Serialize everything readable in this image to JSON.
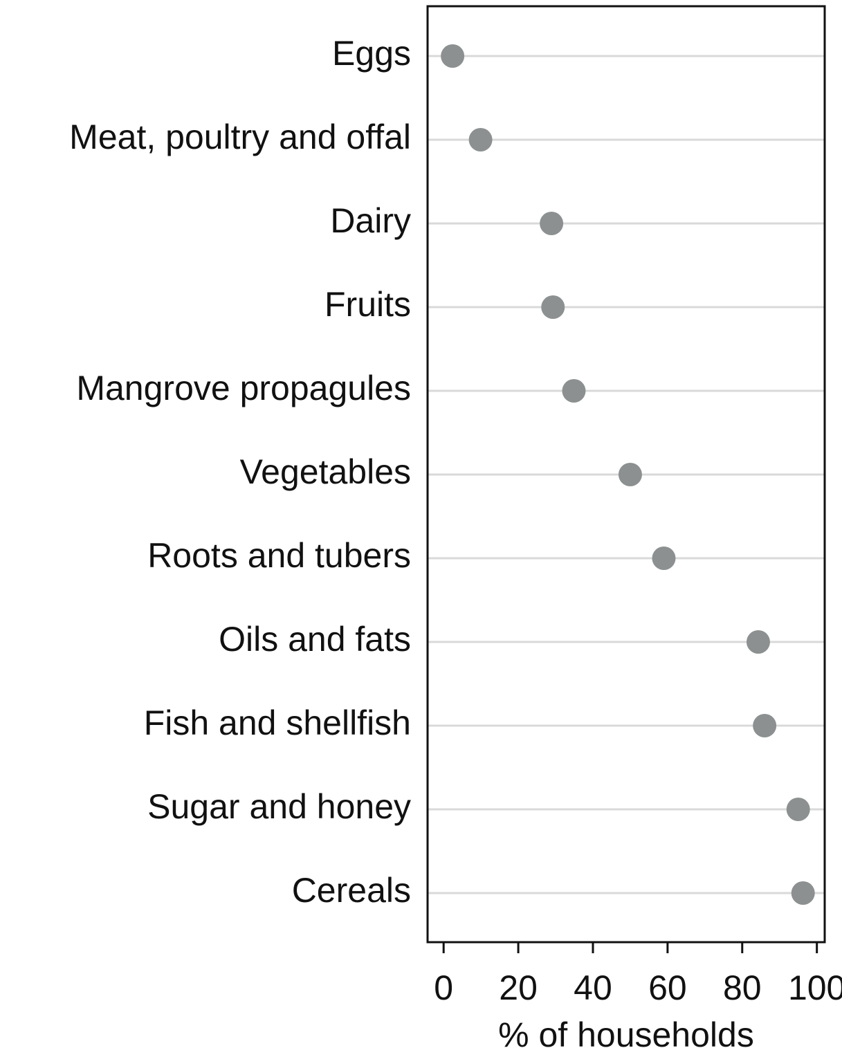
{
  "chart_data": {
    "type": "dot",
    "categories": [
      "Eggs",
      "Meat, poultry and offal",
      "Dairy",
      "Fruits",
      "Mangrove propagules",
      "Vegetables",
      "Roots and tubers",
      "Oils and fats",
      "Fish and shellfish",
      "Sugar and honey",
      "Cereals"
    ],
    "values": [
      2.4,
      9.9,
      28.9,
      29.3,
      34.9,
      50.0,
      59.0,
      84.3,
      86.0,
      95.0,
      96.3
    ],
    "color": "#8c9090",
    "xlabel": "% of households",
    "xlim": [
      -4.3,
      102.1
    ],
    "xticks": [
      0,
      20,
      40,
      60,
      80,
      100
    ],
    "grid": true
  }
}
